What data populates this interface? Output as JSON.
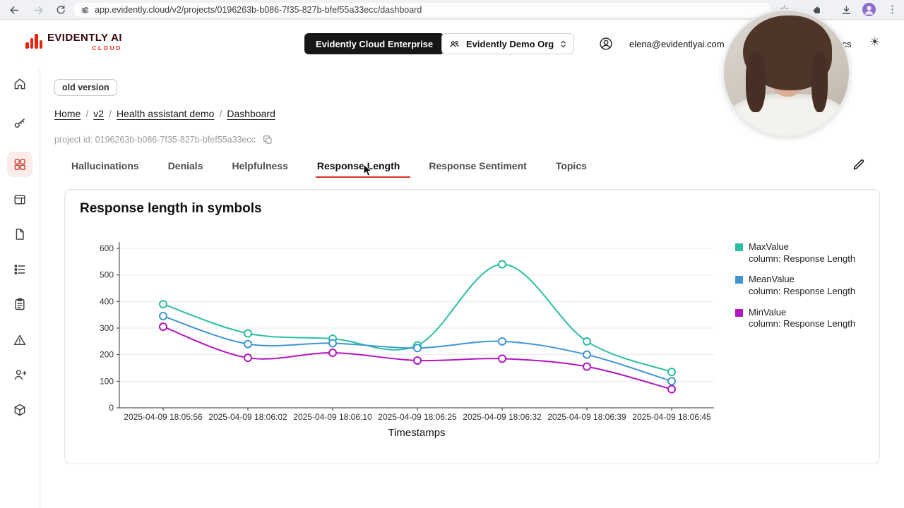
{
  "browser": {
    "url": "app.evidently.cloud/v2/projects/0196263b-b086-7f35-827b-bfef55a33ecc/dashboard",
    "star_glyph": "☆",
    "menu_glyph": "⋮"
  },
  "header": {
    "logo_title": "EVIDENTLY AI",
    "logo_subtitle": "CLOUD",
    "enterprise_badge": "Evidently Cloud Enterprise",
    "org_name": "Evidently Demo Org",
    "user_email": "elena@evidentlyai.com",
    "nav_docs": "Docs",
    "theme_glyph": "☀"
  },
  "sidebar": {
    "icons": [
      "home",
      "key",
      "dashboard-grid",
      "window",
      "document",
      "list",
      "clipboard",
      "alert-triangle",
      "user-plus",
      "package"
    ],
    "active_index": 2
  },
  "page": {
    "version_chip": "old version",
    "breadcrumb": [
      "Home",
      "v2",
      "Health assistant demo",
      "Dashboard"
    ],
    "breadcrumb_sep": "/",
    "project_id_label": "project id: 0196263b-b086-7f35-827b-bfef55a33ecc",
    "tabs": [
      "Hallucinations",
      "Denials",
      "Helpfulness",
      "Response Length",
      "Response Sentiment",
      "Topics"
    ],
    "active_tab": "Response Length"
  },
  "colors": {
    "accent_red": "#da3125",
    "logo_red": "#e8250f",
    "teal": "#2bbfa4",
    "blue": "#3e97d1",
    "magenta": "#b216c0"
  },
  "chart_data": {
    "type": "line",
    "title": "Response length in symbols",
    "xlabel": "Timestamps",
    "ylabel": "",
    "ylim": [
      0,
      600
    ],
    "yticks": [
      0,
      100,
      200,
      300,
      400,
      500,
      600
    ],
    "grid": true,
    "legend_position": "right",
    "categories": [
      "2025-04-09 18:05:56",
      "2025-04-09 18:06:02",
      "2025-04-09 18:06:10",
      "2025-04-09 18:06:25",
      "2025-04-09 18:06:32",
      "2025-04-09 18:06:39",
      "2025-04-09 18:06:45"
    ],
    "series": [
      {
        "name": "MaxValue",
        "subtitle": "column: Response Length",
        "color": "#2bbfa4",
        "values": [
          390,
          280,
          260,
          235,
          540,
          250,
          135
        ]
      },
      {
        "name": "MeanValue",
        "subtitle": "column: Response Length",
        "color": "#3e97d1",
        "values": [
          345,
          240,
          243,
          225,
          250,
          200,
          100
        ]
      },
      {
        "name": "MinValue",
        "subtitle": "column: Response Length",
        "color": "#b216c0",
        "values": [
          305,
          188,
          207,
          178,
          185,
          155,
          70
        ]
      }
    ]
  }
}
